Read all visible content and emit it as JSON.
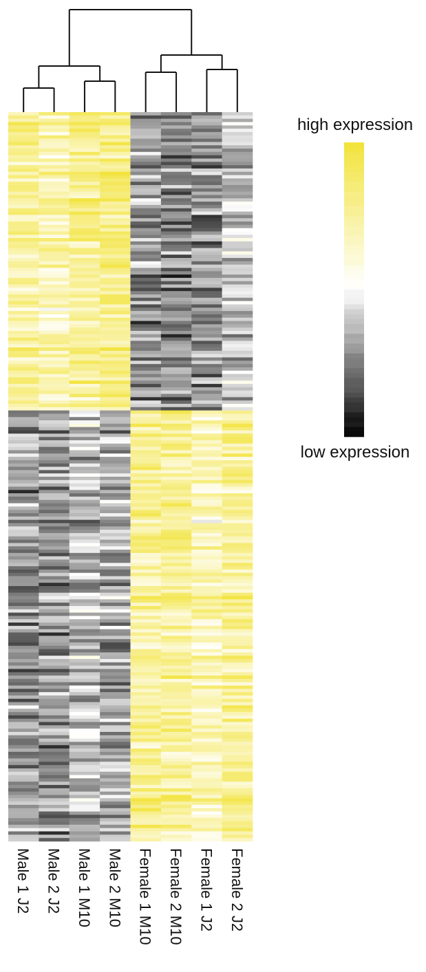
{
  "chart_data": {
    "type": "heatmap",
    "columns": [
      "Male 1 J2",
      "Male 2 J2",
      "Male 1 M10",
      "Male 2 M10",
      "Female 1 M10",
      "Female 2 M10",
      "Female 1 J2",
      "Female 2 J2"
    ],
    "row_count": 220,
    "value_range": [
      0,
      1
    ],
    "colorscale": {
      "low": "#000000",
      "mid": "#ffffff",
      "high": "#f2e33c"
    },
    "legend": {
      "high_label": "high expression",
      "low_label": "low expression"
    },
    "dendrogram_merges": [
      {
        "left": "Male 1 J2",
        "right": "Male 2 J2"
      },
      {
        "left": "Male 1 M10",
        "right": "Male 2 M10"
      },
      {
        "left": "Female 1 M10",
        "right": "Female 2 M10"
      },
      {
        "left": "Female 1 J2",
        "right": "Female 2 J2"
      },
      {
        "left": "Male J2 cluster",
        "right": "Male M10 cluster"
      },
      {
        "left": "Female M10 cluster",
        "right": "Female J2 cluster"
      },
      {
        "left": "Male cluster",
        "right": "Female cluster"
      }
    ],
    "block_means": [
      {
        "rows": [
          0,
          90
        ],
        "values": [
          0.74,
          0.7,
          0.78,
          0.8,
          0.3,
          0.26,
          0.28,
          0.38
        ]
      },
      {
        "rows": [
          90,
          220
        ],
        "values": [
          0.3,
          0.28,
          0.38,
          0.33,
          0.76,
          0.76,
          0.68,
          0.76
        ]
      }
    ]
  }
}
